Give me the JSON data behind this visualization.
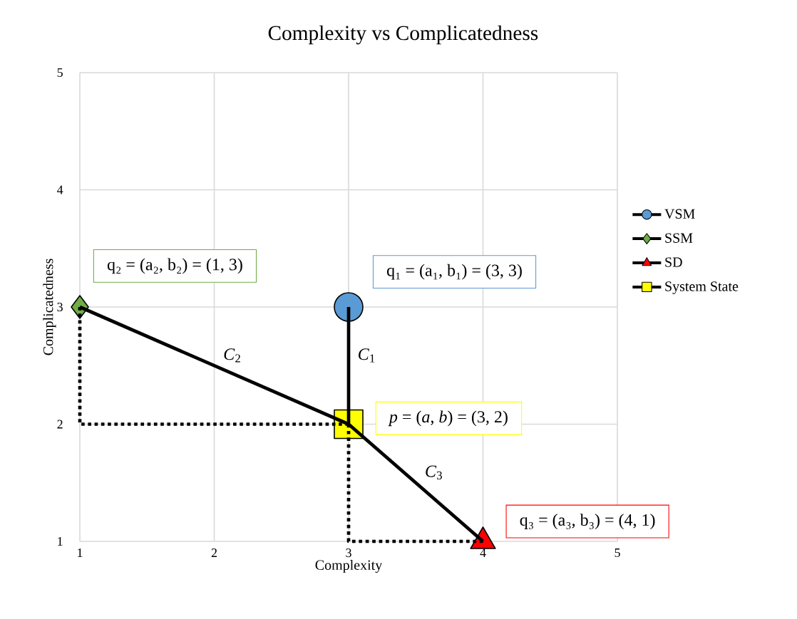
{
  "chart_data": {
    "type": "line",
    "title": "Complexity vs Complicatedness",
    "xlabel": "Complexity",
    "ylabel": "Complicatedness",
    "xlim": [
      1,
      5
    ],
    "ylim": [
      1,
      5
    ],
    "xticks": [
      1,
      2,
      3,
      4,
      5
    ],
    "yticks": [
      1,
      2,
      3,
      4,
      5
    ],
    "grid": true,
    "legend": "right",
    "series": [
      {
        "name": "VSM",
        "type": "scatter",
        "color": "#5b9bd5",
        "marker": "circle",
        "x": [
          3
        ],
        "values": [
          3
        ]
      },
      {
        "name": "SSM",
        "type": "scatter",
        "color": "#70ad47",
        "marker": "diamond",
        "x": [
          1
        ],
        "values": [
          3
        ]
      },
      {
        "name": "SD",
        "type": "scatter",
        "color": "#ff0000",
        "marker": "triangle",
        "x": [
          4
        ],
        "values": [
          1
        ]
      },
      {
        "name": "System State",
        "type": "scatter",
        "color": "#ffff00",
        "marker": "square",
        "x": [
          3
        ],
        "values": [
          2
        ]
      },
      {
        "color": "#000000",
        "marker": "none",
        "x": [
          3,
          3
        ],
        "values": [
          3,
          2
        ]
      },
      {
        "color": "#000000",
        "marker": "none",
        "x": [
          1,
          3
        ],
        "values": [
          3,
          2
        ]
      },
      {
        "color": "#000000",
        "marker": "none",
        "x": [
          3,
          4
        ],
        "values": [
          2,
          1
        ]
      },
      {
        "color": "#000000",
        "marker": "none",
        "line_style": "dotted",
        "x": [
          1,
          1,
          3
        ],
        "values": [
          3,
          2,
          2
        ]
      },
      {
        "color": "#000000",
        "marker": "none",
        "line_style": "dotted",
        "x": [
          3,
          3,
          4
        ],
        "values": [
          2,
          1,
          1
        ]
      }
    ],
    "annotations": [
      {
        "text": "q₁ = (a₁, b₁) = (3, 3)",
        "x": 3,
        "y": 3
      },
      {
        "text": "q₂ = (a₂, b₂) = (1, 3)",
        "x": 1,
        "y": 3
      },
      {
        "text": "q₃ = (a₃, b₃) = (4, 1)",
        "x": 4,
        "y": 1
      },
      {
        "text": "*p* = (*a*, *b*) = (3, 2)",
        "x": 3,
        "y": 2
      },
      {
        "text": "*C*$_{1}$",
        "x": 3,
        "y": 2.5
      },
      {
        "text": "*C*$_{2}$",
        "x": 2,
        "y": 2.5
      },
      {
        "text": "*C*$_{3}$",
        "x": 3.5,
        "y": 1.5
      }
    ]
  }
}
